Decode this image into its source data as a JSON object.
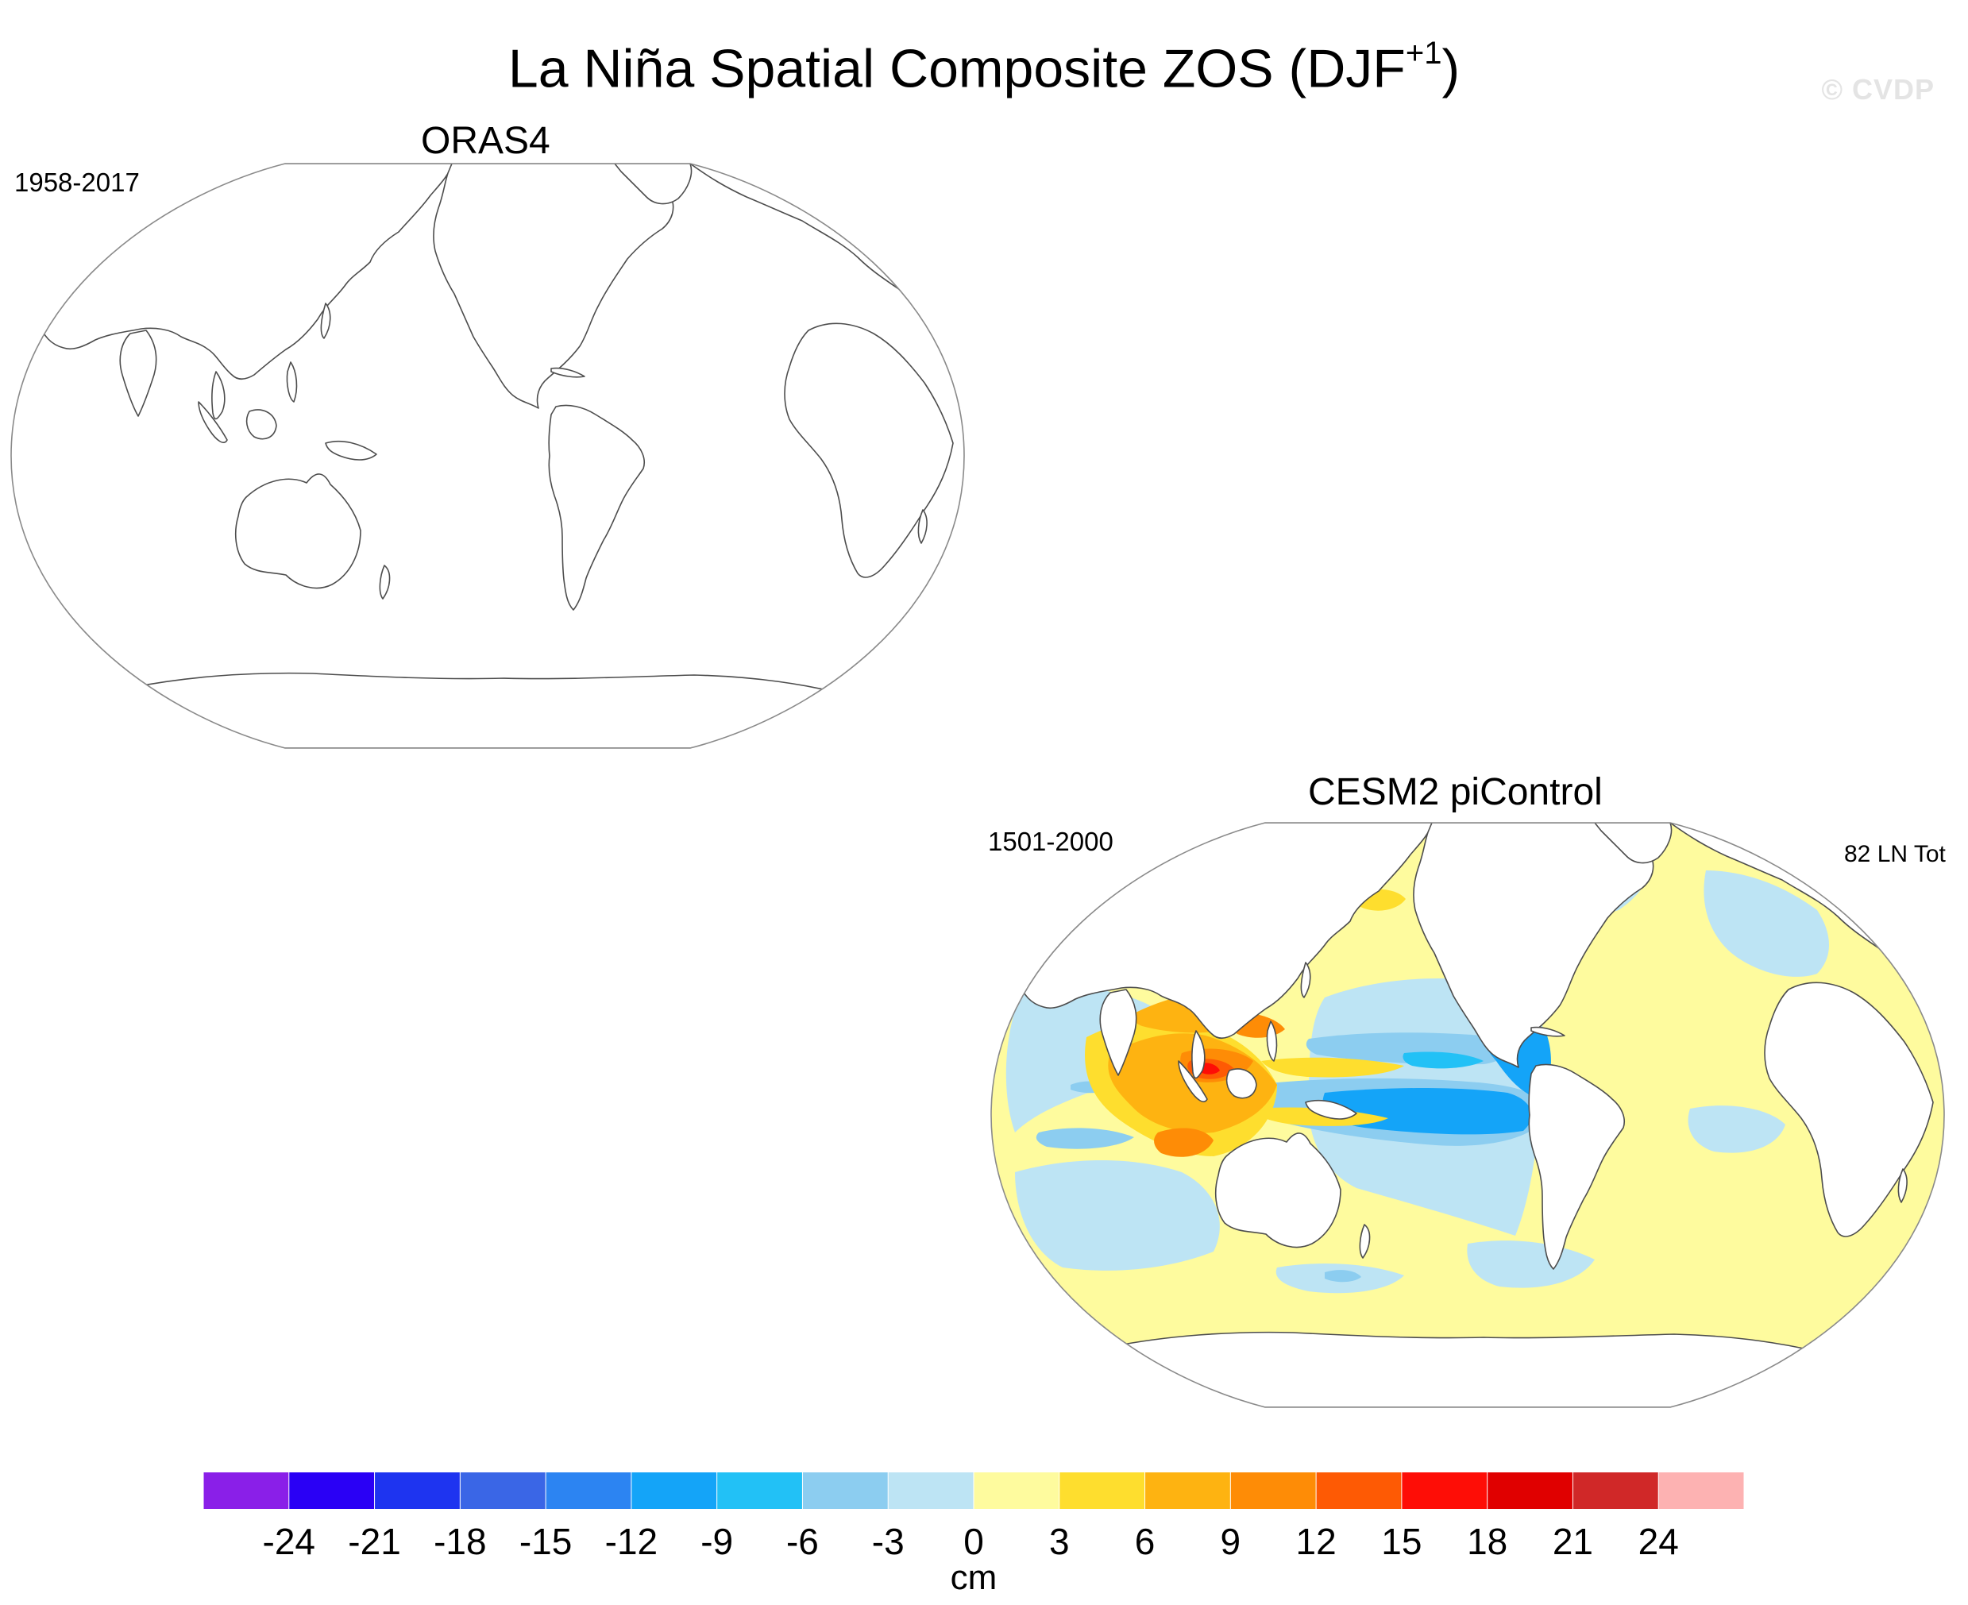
{
  "title": {
    "main": "La Niña Spatial Composite ZOS (DJF",
    "superscript": "+1",
    "close": ")"
  },
  "watermark": "© CVDP",
  "panels": [
    {
      "title": "ORAS4",
      "left_label": "1958-2017",
      "right_label": "",
      "filled": false
    },
    {
      "title": "CESM2 piControl",
      "left_label": "1501-2000",
      "right_label": "82 LN Tot",
      "filled": true
    }
  ],
  "colors": {
    "ocean_default": "#fefb9e",
    "coastline": "#4d4d4d",
    "outline": "#8a8a8a"
  },
  "colorbar": {
    "units": "cm",
    "tick_labels": [
      "-24",
      "-21",
      "-18",
      "-15",
      "-12",
      "-9",
      "-6",
      "-3",
      "0",
      "3",
      "6",
      "9",
      "12",
      "15",
      "18",
      "21",
      "24"
    ],
    "colors": [
      "#8a1fe8",
      "#2a00f5",
      "#1e34f0",
      "#3a66e6",
      "#2c84f2",
      "#14a4f8",
      "#22c1f6",
      "#8ccdf0",
      "#bde4f4",
      "#fefb9e",
      "#fede2e",
      "#feb311",
      "#fe8c06",
      "#fe5a04",
      "#fe0d06",
      "#e00000",
      "#d02828",
      "#fdb2b2"
    ]
  }
}
